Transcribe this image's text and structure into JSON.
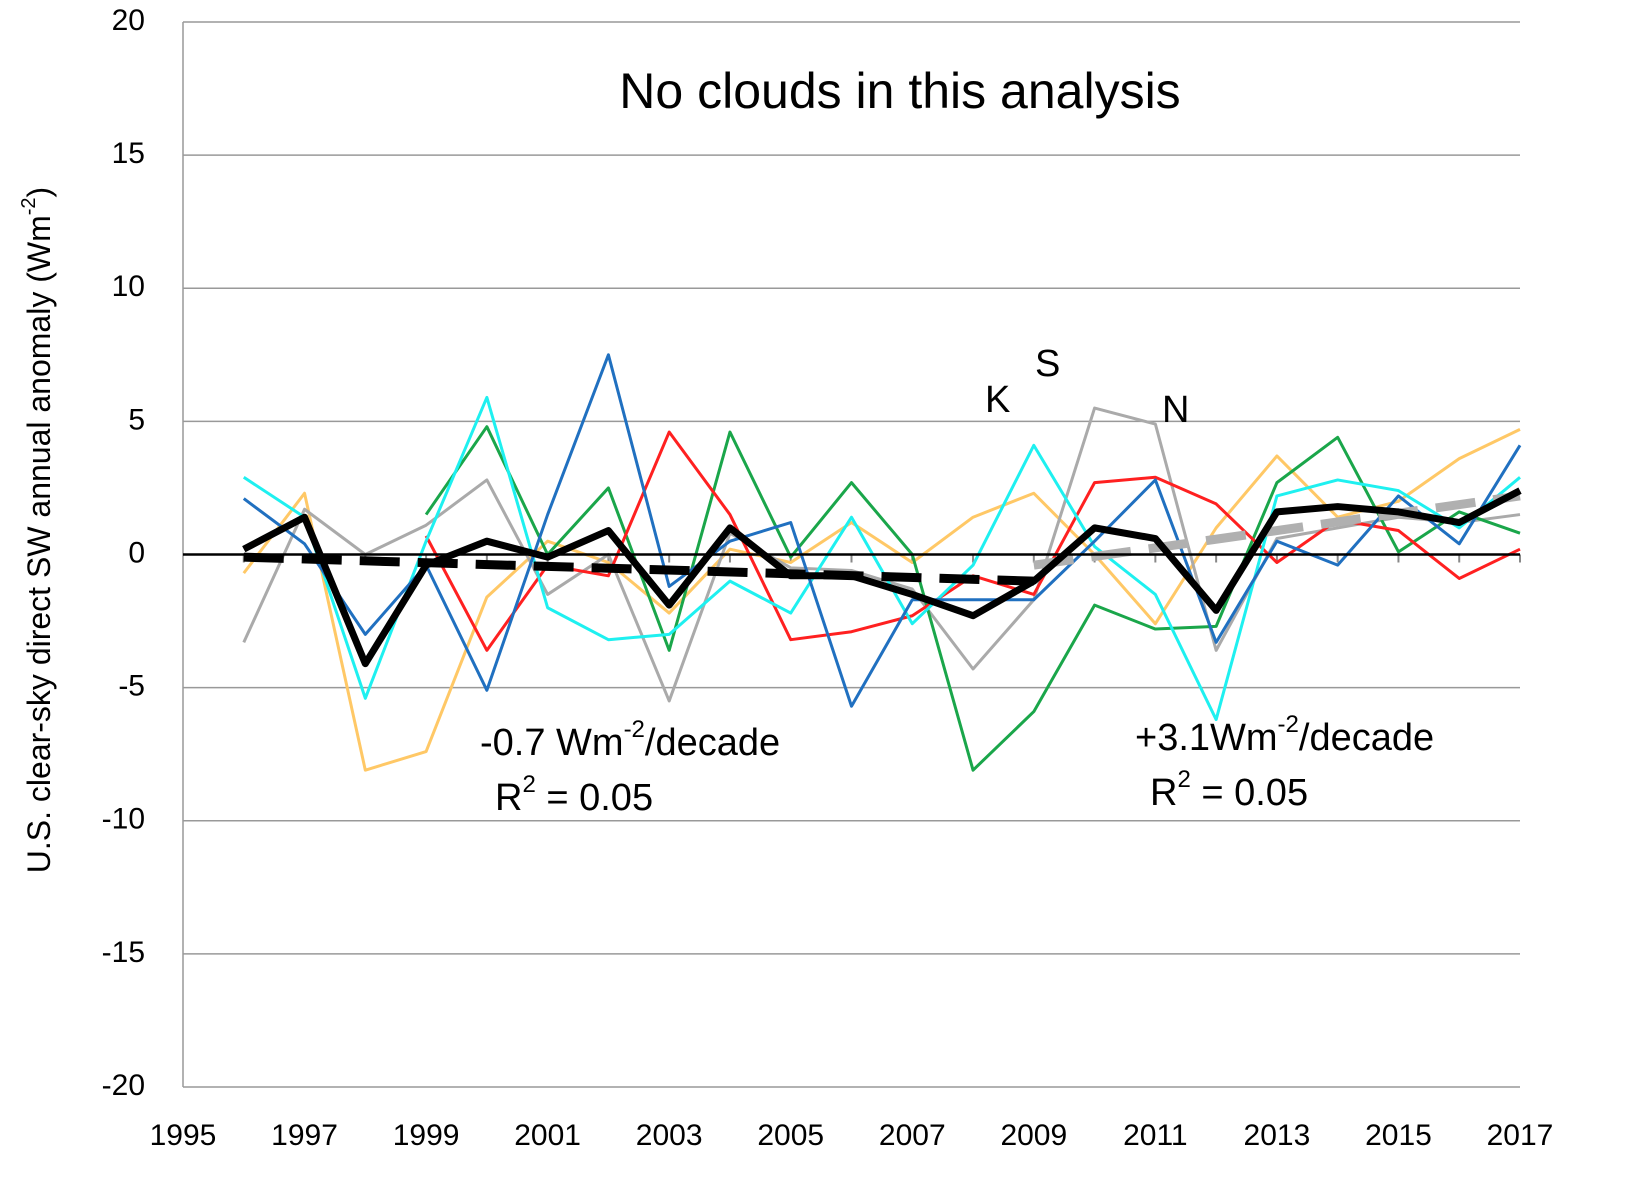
{
  "chart_data": {
    "type": "line",
    "title": "No clouds in this analysis",
    "y_label": [
      "U.S. clear-sky direct SW annual anomaly (Wm",
      "-2",
      ")"
    ],
    "annotations": {
      "labels": [
        "K",
        "S",
        "N"
      ],
      "trend_left": {
        "rate": [
          "-0.7 Wm",
          "-2",
          "/decade"
        ],
        "r2": [
          "R",
          "2",
          " = 0.05"
        ]
      },
      "trend_right": {
        "rate": [
          "+3.1Wm",
          "-2",
          "/decade"
        ],
        "r2": [
          "R",
          "2",
          " = 0.05"
        ]
      }
    },
    "x": [
      1996,
      1997,
      1998,
      1999,
      2000,
      2001,
      2002,
      2003,
      2004,
      2005,
      2006,
      2007,
      2008,
      2009,
      2010,
      2011,
      2012,
      2013,
      2014,
      2015,
      2016,
      2017
    ],
    "xlim": [
      1995,
      2017
    ],
    "xticks": [
      1995,
      1997,
      1999,
      2001,
      2003,
      2005,
      2007,
      2009,
      2011,
      2013,
      2015,
      2017
    ],
    "ylim": [
      -20,
      20
    ],
    "yticks": [
      20,
      15,
      10,
      5,
      0,
      -5,
      -10,
      -15,
      -20
    ],
    "grid": true,
    "series": [
      {
        "color": "#ffc866",
        "width": 3,
        "values": [
          -0.7,
          2.3,
          -8.1,
          -7.4,
          -1.6,
          0.5,
          -0.3,
          -2.2,
          0.2,
          -0.3,
          1.2,
          -0.3,
          1.4,
          2.3,
          0.0,
          -2.6,
          1.0,
          3.7,
          1.4,
          2.0,
          3.6,
          4.7
        ]
      },
      {
        "color": "#aaaaaa",
        "width": 3,
        "values": [
          -3.3,
          1.7,
          0.0,
          1.1,
          2.8,
          -1.5,
          0.0,
          -5.5,
          0.8,
          -0.5,
          -0.6,
          -1.3,
          -4.3,
          -1.7,
          5.5,
          4.9,
          -3.6,
          0.6,
          1.0,
          1.4,
          1.2,
          1.5
        ]
      },
      {
        "color": "#1aa64a",
        "width": 3,
        "values": [
          null,
          null,
          null,
          1.5,
          4.8,
          0.0,
          2.5,
          -3.6,
          4.6,
          -0.1,
          2.7,
          0.0,
          -8.1,
          -5.9,
          -1.9,
          -2.8,
          -2.7,
          2.7,
          4.4,
          0.1,
          1.6,
          0.8
        ]
      },
      {
        "color": "#ff2020",
        "width": 3,
        "values": [
          null,
          null,
          null,
          0.7,
          -3.6,
          -0.4,
          -0.8,
          4.6,
          1.5,
          -3.2,
          -2.9,
          -2.3,
          -0.8,
          -1.5,
          2.7,
          2.9,
          1.9,
          -0.3,
          1.3,
          0.9,
          -0.9,
          0.2
        ]
      },
      {
        "color": "#1ef0f0",
        "width": 3,
        "values": [
          2.9,
          1.4,
          -5.4,
          0.5,
          5.9,
          -2.0,
          -3.2,
          -3.0,
          -1.0,
          -2.2,
          1.4,
          -2.6,
          -0.4,
          4.1,
          0.3,
          -1.5,
          -6.2,
          2.2,
          2.8,
          2.4,
          1.0,
          2.9
        ]
      },
      {
        "color": "#2070c0",
        "width": 3,
        "values": [
          2.1,
          0.4,
          -3.0,
          -0.4,
          -5.1,
          1.5,
          7.5,
          -1.2,
          0.5,
          1.2,
          -5.7,
          -1.7,
          -1.7,
          -1.7,
          0.5,
          2.8,
          -3.3,
          0.5,
          -0.4,
          2.2,
          0.4,
          4.1
        ]
      },
      {
        "color": "#000000",
        "width": 9,
        "dash": true,
        "x": [
          1996,
          2009
        ],
        "values": [
          -0.1,
          -1.0
        ]
      },
      {
        "color": "#b0b0b0",
        "width": 9,
        "dash": true,
        "x": [
          2009,
          2017
        ],
        "values": [
          -0.4,
          2.2
        ]
      },
      {
        "color": "#000000",
        "width": 7,
        "values": [
          0.2,
          1.4,
          -4.1,
          -0.4,
          0.5,
          -0.1,
          0.9,
          -1.9,
          1.0,
          -0.8,
          -0.8,
          -1.5,
          -2.3,
          -1.0,
          1.0,
          0.6,
          -2.1,
          1.6,
          1.8,
          1.6,
          1.2,
          2.4
        ]
      }
    ]
  }
}
